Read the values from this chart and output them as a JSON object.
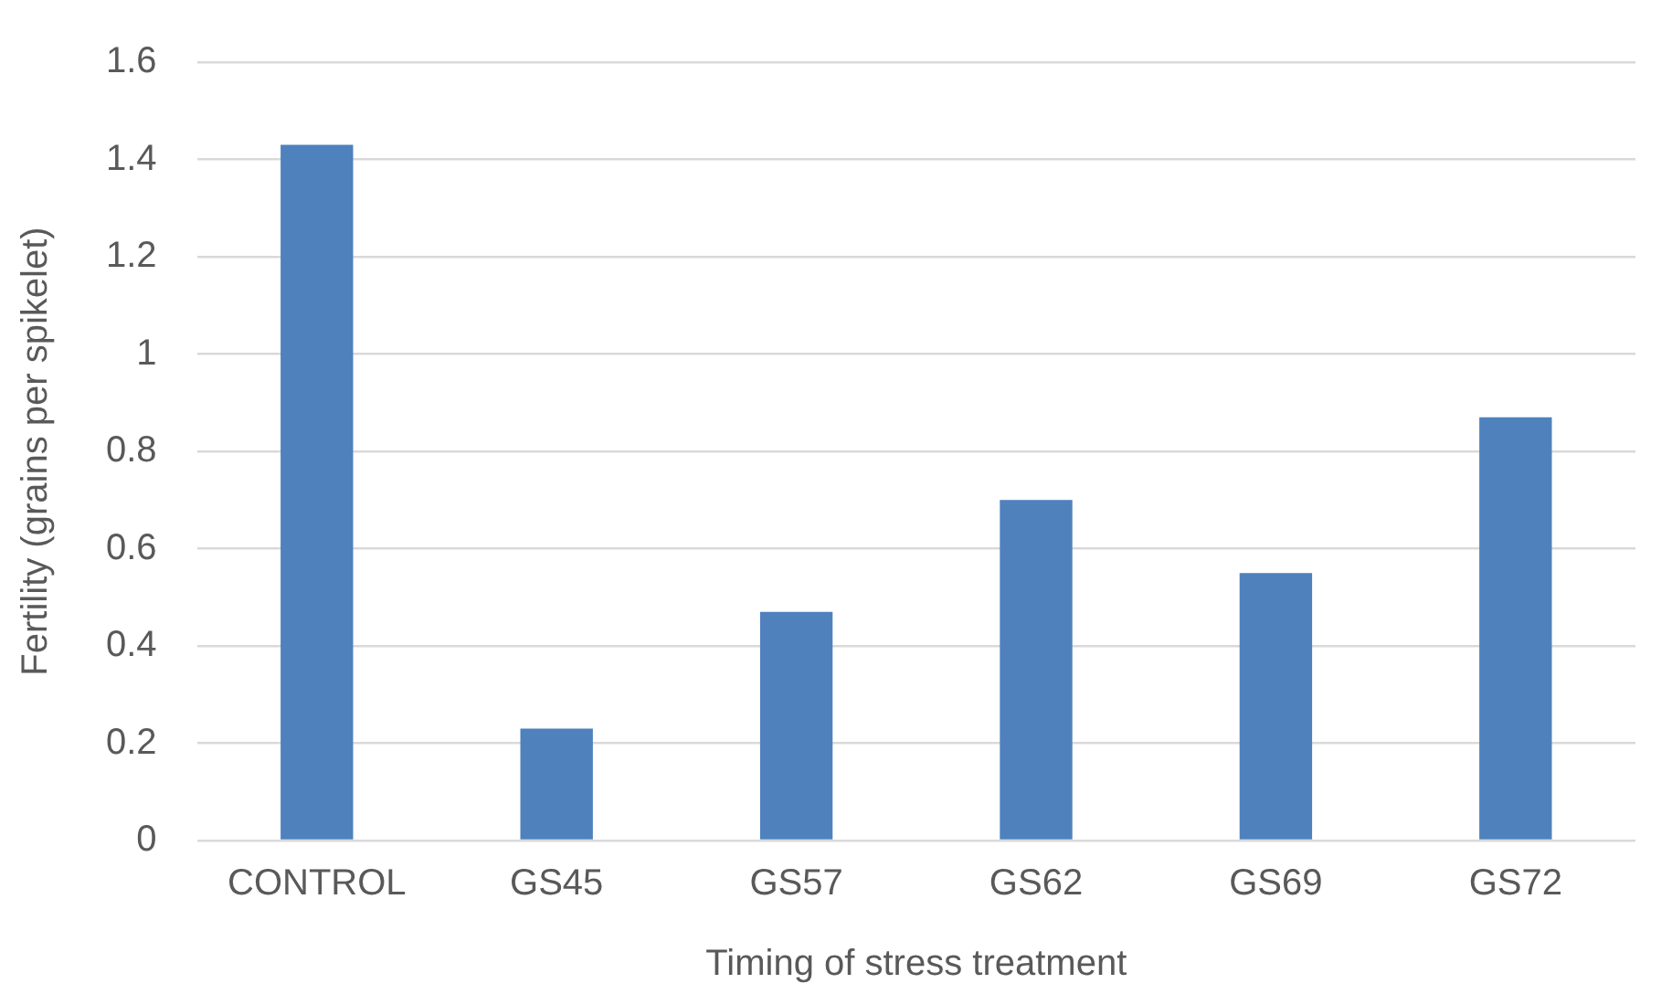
{
  "chart_data": {
    "type": "bar",
    "xlabel": "Timing of stress treatment",
    "ylabel": "Fertility (grains per spikelet)",
    "categories": [
      "CONTROL",
      "GS45",
      "GS57",
      "GS62",
      "GS69",
      "GS72"
    ],
    "values": [
      1.43,
      0.23,
      0.47,
      0.7,
      0.55,
      0.87
    ],
    "color": "#4f81bd",
    "ylim": [
      0,
      1.6
    ],
    "yticks": [
      0,
      0.2,
      0.4,
      0.6,
      0.8,
      1,
      1.2,
      1.4,
      1.6
    ],
    "grid": "y",
    "legend": false
  }
}
